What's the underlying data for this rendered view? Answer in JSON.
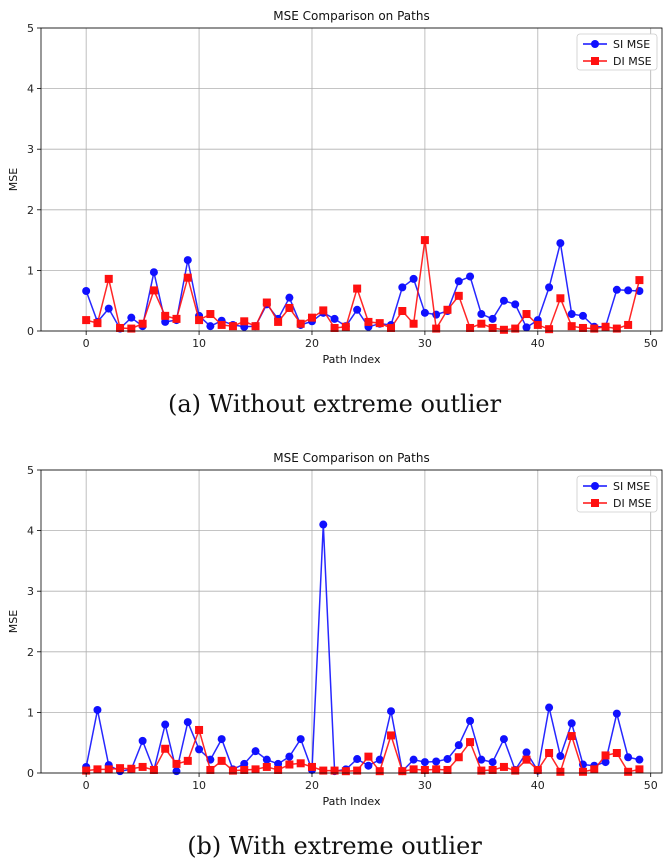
{
  "captions": [
    "(a) Without extreme outlier",
    "(b) With extreme outlier"
  ],
  "colors": {
    "si": "#1010ff",
    "di": "#ff1010"
  },
  "chart_data": [
    {
      "type": "line",
      "title": "MSE Comparison on Paths",
      "xlabel": "Path Index",
      "ylabel": "MSE",
      "xlim": [
        -4,
        51
      ],
      "ylim": [
        0,
        5
      ],
      "xticks": [
        0,
        10,
        20,
        30,
        40,
        50
      ],
      "yticks": [
        0,
        1,
        2,
        3,
        4,
        5
      ],
      "grid": true,
      "legend": "top-right",
      "x": [
        0,
        1,
        2,
        3,
        4,
        5,
        6,
        7,
        8,
        9,
        10,
        11,
        12,
        13,
        14,
        15,
        16,
        17,
        18,
        19,
        20,
        21,
        22,
        23,
        24,
        25,
        26,
        27,
        28,
        29,
        30,
        31,
        32,
        33,
        34,
        35,
        36,
        37,
        38,
        39,
        40,
        41,
        42,
        43,
        44,
        45,
        46,
        47,
        48,
        49
      ],
      "series": [
        {
          "name": "SI MSE",
          "marker": "circle",
          "values": [
            0.66,
            0.15,
            0.37,
            0.04,
            0.22,
            0.08,
            0.97,
            0.15,
            0.18,
            1.17,
            0.25,
            0.08,
            0.17,
            0.1,
            0.07,
            0.08,
            0.44,
            0.2,
            0.55,
            0.1,
            0.16,
            0.3,
            0.2,
            0.08,
            0.35,
            0.07,
            0.12,
            0.1,
            0.72,
            0.86,
            0.3,
            0.27,
            0.33,
            0.82,
            0.9,
            0.28,
            0.2,
            0.5,
            0.44,
            0.06,
            0.18,
            0.72,
            1.45,
            0.28,
            0.25,
            0.07,
            0.07,
            0.68,
            0.67,
            0.66
          ]
        },
        {
          "name": "DI MSE",
          "marker": "square",
          "values": [
            0.18,
            0.13,
            0.86,
            0.05,
            0.04,
            0.12,
            0.67,
            0.25,
            0.2,
            0.88,
            0.18,
            0.28,
            0.1,
            0.08,
            0.16,
            0.08,
            0.47,
            0.15,
            0.38,
            0.12,
            0.22,
            0.34,
            0.05,
            0.07,
            0.7,
            0.15,
            0.13,
            0.05,
            0.33,
            0.12,
            1.5,
            0.04,
            0.35,
            0.58,
            0.05,
            0.12,
            0.05,
            0.02,
            0.04,
            0.28,
            0.1,
            0.03,
            0.54,
            0.08,
            0.05,
            0.04,
            0.07,
            0.04,
            0.1,
            0.84
          ]
        }
      ]
    },
    {
      "type": "line",
      "title": "MSE Comparison on Paths",
      "xlabel": "Path Index",
      "ylabel": "MSE",
      "xlim": [
        -4,
        51
      ],
      "ylim": [
        0,
        5
      ],
      "xticks": [
        0,
        10,
        20,
        30,
        40,
        50
      ],
      "yticks": [
        0,
        1,
        2,
        3,
        4,
        5
      ],
      "grid": true,
      "legend": "top-right",
      "x": [
        0,
        1,
        2,
        3,
        4,
        5,
        6,
        7,
        8,
        9,
        10,
        11,
        12,
        13,
        14,
        15,
        16,
        17,
        18,
        19,
        20,
        21,
        22,
        23,
        24,
        25,
        26,
        27,
        28,
        29,
        30,
        31,
        32,
        33,
        34,
        35,
        36,
        37,
        38,
        39,
        40,
        41,
        42,
        43,
        44,
        45,
        46,
        47,
        48,
        49
      ],
      "series": [
        {
          "name": "SI MSE",
          "marker": "circle",
          "values": [
            0.1,
            1.04,
            0.13,
            0.03,
            0.06,
            0.53,
            0.05,
            0.8,
            0.03,
            0.84,
            0.39,
            0.22,
            0.56,
            0.06,
            0.15,
            0.36,
            0.22,
            0.15,
            0.27,
            0.56,
            0.05,
            4.1,
            0.03,
            0.06,
            0.23,
            0.12,
            0.22,
            1.02,
            0.03,
            0.22,
            0.18,
            0.19,
            0.23,
            0.46,
            0.86,
            0.22,
            0.18,
            0.56,
            0.05,
            0.34,
            0.04,
            1.08,
            0.28,
            0.82,
            0.14,
            0.12,
            0.18,
            0.98,
            0.26,
            0.22
          ]
        },
        {
          "name": "DI MSE",
          "marker": "square",
          "values": [
            0.04,
            0.06,
            0.06,
            0.08,
            0.07,
            0.1,
            0.05,
            0.4,
            0.15,
            0.2,
            0.71,
            0.05,
            0.2,
            0.04,
            0.05,
            0.06,
            0.1,
            0.05,
            0.14,
            0.16,
            0.1,
            0.04,
            0.04,
            0.03,
            0.04,
            0.27,
            0.03,
            0.62,
            0.03,
            0.06,
            0.05,
            0.06,
            0.05,
            0.26,
            0.51,
            0.04,
            0.05,
            0.1,
            0.04,
            0.22,
            0.05,
            0.33,
            0.02,
            0.61,
            0.02,
            0.06,
            0.29,
            0.33,
            0.02,
            0.06
          ]
        }
      ]
    }
  ]
}
